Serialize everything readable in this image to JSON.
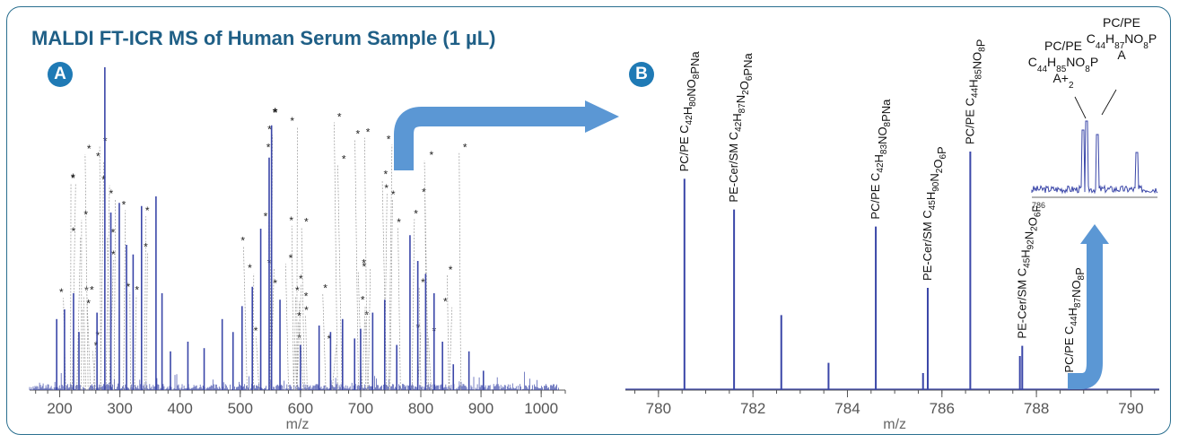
{
  "figure": {
    "title": "MALDI FT-ICR MS of Human Serum Sample (1 µL)",
    "panel_a_badge": "A",
    "panel_b_badge": "B",
    "colors": {
      "frame": "#2a6f8f",
      "title": "#1f5f86",
      "badge": "#1f7ab5",
      "spectrum": "#3a46a8",
      "arrow": "#5b97d4"
    }
  },
  "chart_data": [
    {
      "type": "line",
      "panel": "A",
      "xlabel": "m/z",
      "xlim": [
        150,
        1040
      ],
      "xticks": [
        "200",
        "300",
        "400",
        "500",
        "600",
        "700",
        "800",
        "900",
        "1000"
      ],
      "xtick_values": [
        200,
        300,
        400,
        500,
        600,
        700,
        800,
        900,
        1000
      ],
      "peaks": {
        "x": [
          195,
          208,
          223,
          232,
          262,
          275,
          285,
          299,
          311,
          322,
          336,
          360,
          370,
          384,
          413,
          440,
          470,
          488,
          503,
          520,
          534,
          548,
          552,
          566,
          600,
          631,
          650,
          670,
          690,
          700,
          720,
          740,
          760,
          782,
          795,
          808,
          822,
          836,
          854,
          880,
          904
        ],
        "y": [
          0.22,
          0.25,
          0.3,
          0.18,
          0.24,
          1.0,
          0.55,
          0.58,
          0.45,
          0.42,
          0.57,
          0.6,
          0.3,
          0.12,
          0.15,
          0.13,
          0.22,
          0.18,
          0.26,
          0.32,
          0.5,
          0.72,
          0.82,
          0.28,
          0.14,
          0.2,
          0.18,
          0.22,
          0.16,
          0.19,
          0.24,
          0.28,
          0.14,
          0.48,
          0.4,
          0.36,
          0.3,
          0.15,
          0.08,
          0.12,
          0.06
        ]
      },
      "annotation_symbol": "*"
    },
    {
      "type": "line",
      "panel": "B",
      "xlabel": "m/z",
      "xlim": [
        779.3,
        790.6
      ],
      "xticks": [
        "780",
        "782",
        "784",
        "786",
        "788",
        "790"
      ],
      "xtick_values": [
        780,
        782,
        784,
        786,
        788,
        790
      ],
      "peaks": {
        "x": [
          780.55,
          781.6,
          782.6,
          783.6,
          784.6,
          785.6,
          785.7,
          786.6,
          787.65,
          787.7,
          788.7
        ],
        "y": [
          0.62,
          0.53,
          0.22,
          0.08,
          0.48,
          0.05,
          0.3,
          0.7,
          0.1,
          0.13,
          0.03
        ]
      },
      "labels": [
        {
          "x": 780.55,
          "text": "PC/PE C42H80NO8PNa"
        },
        {
          "x": 781.6,
          "text": "PE-Cer/SM C42H87N2O6PNa"
        },
        {
          "x": 784.6,
          "text": "PC/PE C42H83NO8PNa"
        },
        {
          "x": 785.7,
          "text": "PE-Cer/SM C45H90N2O6P"
        },
        {
          "x": 786.6,
          "text": "PC/PE C44H85NO8P"
        },
        {
          "x": 787.7,
          "text": "PE-Cer/SM C45H92N2O6P"
        },
        {
          "x": 788.7,
          "text": "PC/PE C44H87NO8P"
        }
      ],
      "inset": {
        "axis_start_label": "786",
        "label_left": [
          "PC/PE",
          "C44H85NO8P",
          "A+2"
        ],
        "label_right": [
          "PC/PE",
          "C44H87NO8P",
          "A"
        ]
      }
    }
  ]
}
